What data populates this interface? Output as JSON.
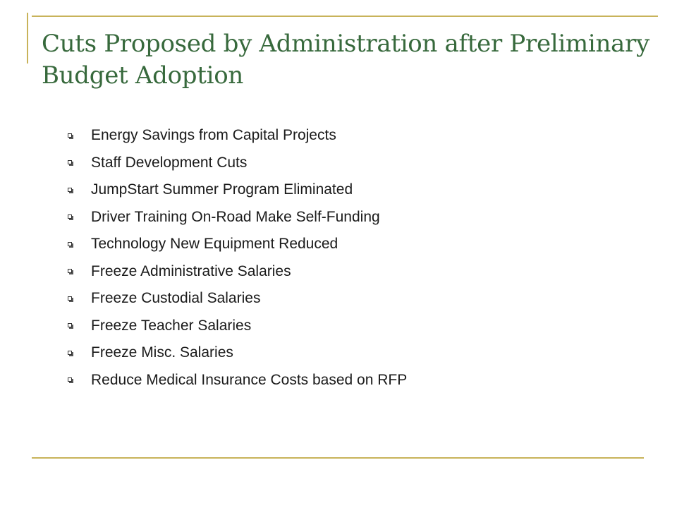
{
  "slide": {
    "title": "Cuts Proposed by Administration after Preliminary Budget Adoption",
    "accent_color": "#c8b35a",
    "title_color": "#37693c",
    "bullet_icon": "hollow-square-bullet-icon",
    "bullets": [
      "Energy Savings from Capital Projects",
      "Staff Development Cuts",
      "JumpStart Summer Program Eliminated",
      "Driver Training On-Road Make Self-Funding",
      "Technology New Equipment Reduced",
      "Freeze Administrative Salaries",
      "Freeze Custodial Salaries",
      "Freeze Teacher Salaries",
      "Freeze Misc. Salaries",
      "Reduce Medical Insurance Costs based on RFP"
    ]
  }
}
